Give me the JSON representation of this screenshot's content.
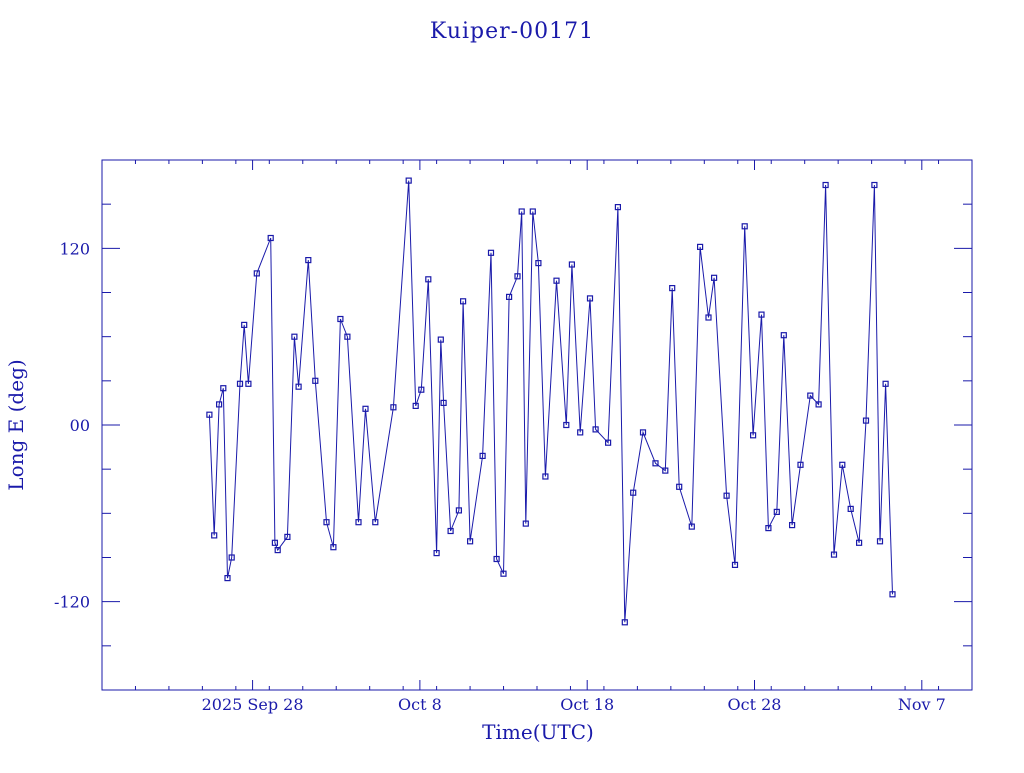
{
  "chart_data": {
    "type": "scatter",
    "title": "Kuiper-00171",
    "xlabel": "Time(UTC)",
    "ylabel": "Long E (deg)",
    "x_tick_labels": [
      "2025 Sep 28",
      "Oct  8",
      "Oct 18",
      "Oct 28",
      "Nov  7"
    ],
    "x_tick_dates": [
      "2025-09-28",
      "2025-10-08",
      "2025-10-18",
      "2025-10-28",
      "2025-11-07"
    ],
    "xlim": [
      "2025-09-19",
      "2025-11-10"
    ],
    "ylim": [
      -180,
      180
    ],
    "y_ticks": [
      -120,
      0,
      120
    ],
    "y_tick_labels": [
      "-120",
      "00",
      "120"
    ],
    "grid": false,
    "line_color": "#1a1aaa",
    "marker": "square",
    "series": [
      {
        "x": [
          "2025-09-25 10:00",
          "2025-09-25 17:00",
          "2025-09-26 00:00",
          "2025-09-26 06:00",
          "2025-09-26 12:00",
          "2025-09-26 18:00",
          "2025-09-27 06:00",
          "2025-09-27 12:00",
          "2025-09-27 18:00",
          "2025-09-28 06:00",
          "2025-09-29 02:00",
          "2025-09-29 08:00",
          "2025-09-29 12:00",
          "2025-09-30 02:00",
          "2025-09-30 12:00",
          "2025-09-30 18:00",
          "2025-10-01 08:00",
          "2025-10-01 18:00",
          "2025-10-02 10:00",
          "2025-10-02 20:00",
          "2025-10-03 06:00",
          "2025-10-03 16:00",
          "2025-10-04 08:00",
          "2025-10-04 18:00",
          "2025-10-05 08:00",
          "2025-10-06 10:00",
          "2025-10-07 08:00",
          "2025-10-07 18:00",
          "2025-10-08 02:00",
          "2025-10-08 12:00",
          "2025-10-09 00:00",
          "2025-10-09 06:00",
          "2025-10-09 10:00",
          "2025-10-09 20:00",
          "2025-10-10 08:00",
          "2025-10-10 14:00",
          "2025-10-11 00:00",
          "2025-10-11 18:00",
          "2025-10-12 06:00",
          "2025-10-12 14:00",
          "2025-10-13 00:00",
          "2025-10-13 08:00",
          "2025-10-13 20:00",
          "2025-10-14 02:00",
          "2025-10-14 08:00",
          "2025-10-14 18:00",
          "2025-10-15 02:00",
          "2025-10-15 12:00",
          "2025-10-16 04:00",
          "2025-10-16 18:00",
          "2025-10-17 02:00",
          "2025-10-17 14:00",
          "2025-10-18 04:00",
          "2025-10-18 12:00",
          "2025-10-19 06:00",
          "2025-10-19 20:00",
          "2025-10-20 06:00",
          "2025-10-20 18:00",
          "2025-10-21 08:00",
          "2025-10-22 02:00",
          "2025-10-22 16:00",
          "2025-10-23 02:00",
          "2025-10-23 12:00",
          "2025-10-24 06:00",
          "2025-10-24 18:00",
          "2025-10-25 06:00",
          "2025-10-25 14:00",
          "2025-10-26 08:00",
          "2025-10-26 20:00",
          "2025-10-27 10:00",
          "2025-10-27 22:00",
          "2025-10-28 10:00",
          "2025-10-28 20:00",
          "2025-10-29 08:00",
          "2025-10-29 18:00",
          "2025-10-30 06:00",
          "2025-10-30 18:00",
          "2025-10-31 08:00",
          "2025-10-31 20:00",
          "2025-11-01 06:00",
          "2025-11-01 18:00",
          "2025-11-02 06:00",
          "2025-11-02 18:00",
          "2025-11-03 06:00",
          "2025-11-03 16:00",
          "2025-11-04 04:00",
          "2025-11-04 12:00",
          "2025-11-04 20:00",
          "2025-11-05 06:00"
        ],
        "y": [
          7,
          -75,
          14,
          25,
          -104,
          -90,
          28,
          68,
          28,
          103,
          127,
          -80,
          -85,
          -76,
          60,
          26,
          112,
          30,
          -66,
          -83,
          72,
          60,
          -66,
          11,
          -66,
          12,
          166,
          13,
          24,
          99,
          -87,
          58,
          15,
          -72,
          -58,
          84,
          -79,
          -21,
          117,
          -91,
          -101,
          87,
          101,
          145,
          -67,
          145,
          110,
          -35,
          98,
          0,
          109,
          -5,
          86,
          -3,
          -12,
          148,
          -134,
          -46,
          -5,
          -26,
          -31,
          93,
          -42,
          -69,
          121,
          73,
          100,
          -48,
          -95,
          135,
          -7,
          75,
          -70,
          -59,
          61,
          -68,
          -27,
          20,
          14,
          163,
          -88,
          -27,
          -57,
          -80,
          3,
          163,
          -79,
          28,
          -115
        ]
      }
    ]
  }
}
